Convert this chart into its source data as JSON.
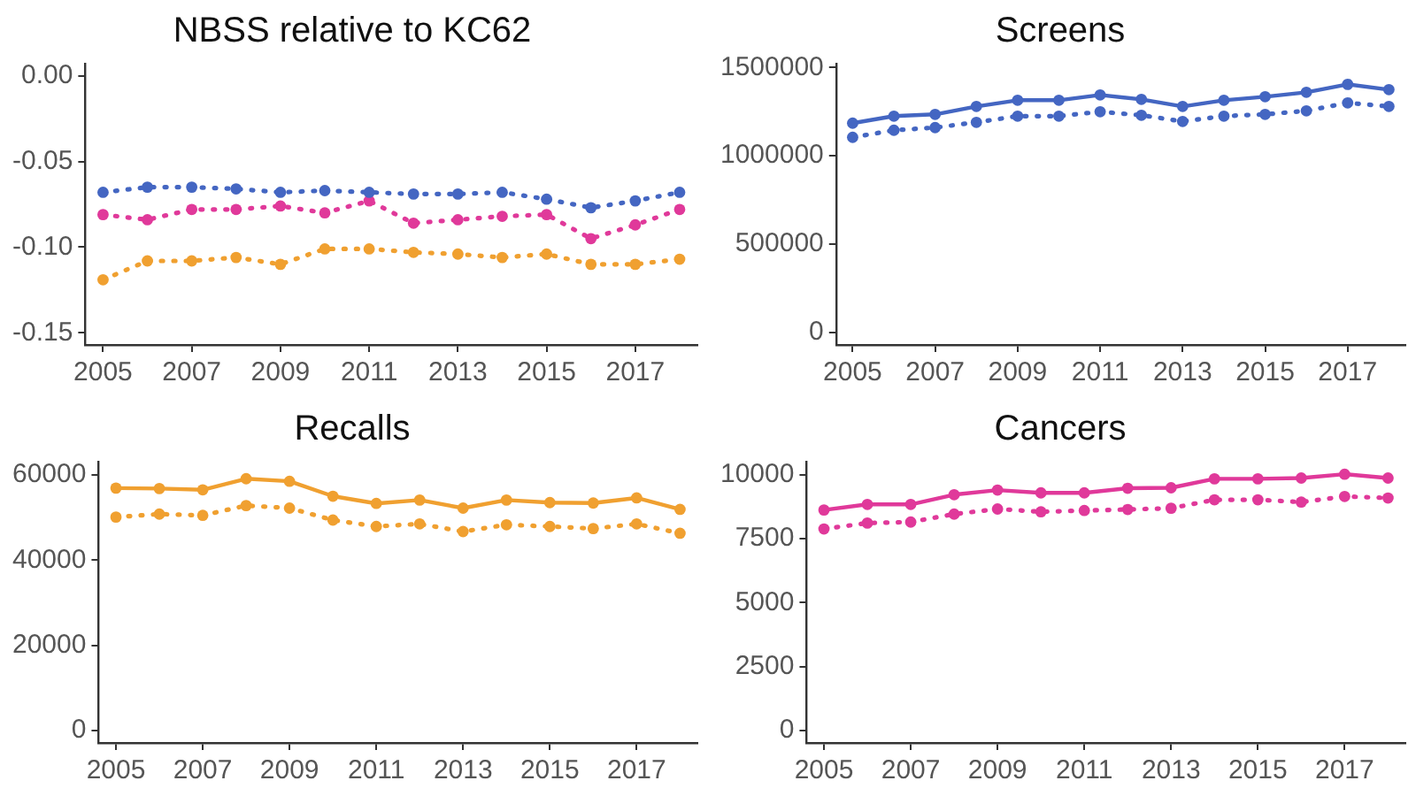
{
  "chart_data": [
    {
      "type": "line",
      "title": "NBSS relative to KC62",
      "x": [
        2005,
        2006,
        2007,
        2008,
        2009,
        2010,
        2011,
        2012,
        2013,
        2014,
        2015,
        2016,
        2017,
        2018
      ],
      "xlim": [
        2004.6,
        2018.4
      ],
      "xticks": [
        2005,
        2007,
        2009,
        2011,
        2013,
        2015,
        2017
      ],
      "ylim": [
        -0.157,
        0.007
      ],
      "yticks": [
        {
          "value": 0,
          "label": "0.00"
        },
        {
          "value": -0.05,
          "label": "-0.05"
        },
        {
          "value": -0.1,
          "label": "-0.10"
        },
        {
          "value": -0.15,
          "label": "-0.15"
        }
      ],
      "grid": false,
      "marker": "circle",
      "series": [
        {
          "color": "#4466c2",
          "line_style": "dotted",
          "values": [
            -0.068,
            -0.065,
            -0.065,
            -0.066,
            -0.068,
            -0.067,
            -0.068,
            -0.069,
            -0.069,
            -0.068,
            -0.072,
            -0.077,
            -0.073,
            -0.068
          ]
        },
        {
          "color": "#e0399a",
          "line_style": "dotted",
          "values": [
            -0.081,
            -0.084,
            -0.078,
            -0.078,
            -0.076,
            -0.08,
            -0.073,
            -0.086,
            -0.084,
            -0.082,
            -0.081,
            -0.095,
            -0.087,
            -0.078
          ]
        },
        {
          "color": "#f0a030",
          "line_style": "dotted",
          "values": [
            -0.119,
            -0.108,
            -0.108,
            -0.106,
            -0.11,
            -0.101,
            -0.101,
            -0.103,
            -0.104,
            -0.106,
            -0.104,
            -0.11,
            -0.11,
            -0.107
          ]
        }
      ]
    },
    {
      "type": "line",
      "title": "Screens",
      "x": [
        2005,
        2006,
        2007,
        2008,
        2009,
        2010,
        2011,
        2012,
        2013,
        2014,
        2015,
        2016,
        2017,
        2018
      ],
      "xlim": [
        2004.6,
        2018.4
      ],
      "xticks": [
        2005,
        2007,
        2009,
        2011,
        2013,
        2015,
        2017
      ],
      "ylim": [
        -71000,
        1522000
      ],
      "yticks": [
        0,
        500000,
        1000000,
        1500000
      ],
      "grid": false,
      "marker": "circle",
      "series": [
        {
          "color": "#4466c2",
          "line_style": "solid",
          "values": [
            1185000,
            1225000,
            1235000,
            1280000,
            1315000,
            1315000,
            1345000,
            1320000,
            1280000,
            1315000,
            1335000,
            1360000,
            1405000,
            1375000
          ]
        },
        {
          "color": "#4466c2",
          "line_style": "dotted",
          "values": [
            1105000,
            1145000,
            1160000,
            1190000,
            1225000,
            1225000,
            1250000,
            1230000,
            1195000,
            1225000,
            1235000,
            1255000,
            1300000,
            1280000
          ]
        }
      ]
    },
    {
      "type": "line",
      "title": "Recalls",
      "x": [
        2005,
        2006,
        2007,
        2008,
        2009,
        2010,
        2011,
        2012,
        2013,
        2014,
        2015,
        2016,
        2017,
        2018
      ],
      "xlim": [
        2004.6,
        2018.4
      ],
      "xticks": [
        2005,
        2007,
        2009,
        2011,
        2013,
        2015,
        2017
      ],
      "ylim": [
        -2900,
        63100
      ],
      "yticks": [
        0,
        20000,
        40000,
        60000
      ],
      "grid": false,
      "marker": "circle",
      "series": [
        {
          "color": "#f0a030",
          "line_style": "solid",
          "values": [
            56900,
            56800,
            56500,
            59100,
            58500,
            55000,
            53300,
            54100,
            52200,
            54100,
            53500,
            53400,
            54600,
            51900
          ]
        },
        {
          "color": "#f0a030",
          "line_style": "dotted",
          "values": [
            50100,
            50800,
            50500,
            52800,
            52200,
            49400,
            47900,
            48500,
            46700,
            48300,
            47900,
            47400,
            48500,
            46300
          ]
        }
      ]
    },
    {
      "type": "line",
      "title": "Cancers",
      "x": [
        2005,
        2006,
        2007,
        2008,
        2009,
        2010,
        2011,
        2012,
        2013,
        2014,
        2015,
        2016,
        2017,
        2018
      ],
      "xlim": [
        2004.6,
        2018.4
      ],
      "xticks": [
        2005,
        2007,
        2009,
        2011,
        2013,
        2015,
        2017
      ],
      "ylim": [
        -490,
        10510
      ],
      "yticks": [
        0,
        2500,
        5000,
        7500,
        10000
      ],
      "grid": false,
      "marker": "circle",
      "series": [
        {
          "color": "#e0399a",
          "line_style": "solid",
          "values": [
            8620,
            8840,
            8840,
            9220,
            9400,
            9290,
            9290,
            9470,
            9490,
            9840,
            9840,
            9870,
            10020,
            9870
          ]
        },
        {
          "color": "#e0399a",
          "line_style": "dotted",
          "values": [
            7880,
            8110,
            8150,
            8460,
            8660,
            8550,
            8600,
            8640,
            8690,
            9020,
            9020,
            8930,
            9150,
            9090
          ]
        }
      ]
    }
  ]
}
